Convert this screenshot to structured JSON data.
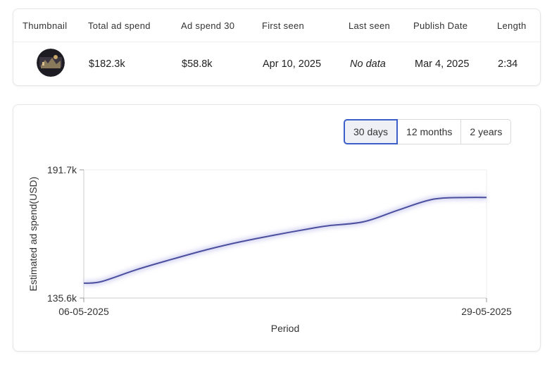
{
  "table": {
    "columns": [
      "Thumbnail",
      "Total ad spend",
      "Ad spend 30",
      "First seen",
      "Last seen",
      "Publish Date",
      "Length"
    ],
    "row": {
      "total_ad_spend": "$182.3k",
      "ad_spend_30": "$58.8k",
      "first_seen": "Apr 10, 2025",
      "last_seen": "No data",
      "publish_date": "Mar 4, 2025",
      "length": "2:34"
    }
  },
  "range_buttons": {
    "days30": "30 days",
    "months12": "12 months",
    "years2": "2 years",
    "active": "30 days"
  },
  "chart_data": {
    "type": "line",
    "ylabel": "Estimated ad spend(USD)",
    "xlabel": "Period",
    "y_ticks": [
      "191.7k",
      "135.6k"
    ],
    "x_ticks": [
      "06-05-2025",
      "29-05-2025"
    ],
    "ylim": [
      135.6,
      191.7
    ],
    "x_range": [
      "2025-05-06",
      "2025-05-29"
    ],
    "series": [
      {
        "color": "#4b4f9e",
        "points": [
          {
            "x": "2025-05-06",
            "y": 142.1
          },
          {
            "x": "2025-05-07",
            "y": 142.8
          },
          {
            "x": "2025-05-09",
            "y": 148.0
          },
          {
            "x": "2025-05-11",
            "y": 152.5
          },
          {
            "x": "2025-05-13",
            "y": 156.7
          },
          {
            "x": "2025-05-15",
            "y": 160.3
          },
          {
            "x": "2025-05-17",
            "y": 163.3
          },
          {
            "x": "2025-05-19",
            "y": 166.1
          },
          {
            "x": "2025-05-20",
            "y": 167.3
          },
          {
            "x": "2025-05-22",
            "y": 169.0
          },
          {
            "x": "2025-05-24",
            "y": 174.2
          },
          {
            "x": "2025-05-26",
            "y": 178.9
          },
          {
            "x": "2025-05-28",
            "y": 179.6
          },
          {
            "x": "2025-05-29",
            "y": 179.6
          }
        ]
      }
    ],
    "grid": false
  },
  "colors": {
    "line": "#4b4f9e",
    "line_glow": "#c9c9ef",
    "active_border": "#3b5ec9",
    "active_bg": "#eef0f5"
  },
  "icons": {
    "thumbnail": "video-thumbnail-image"
  }
}
